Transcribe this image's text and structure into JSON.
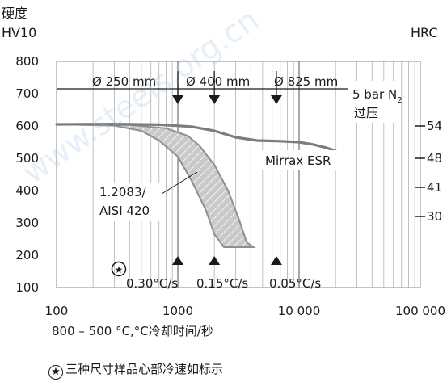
{
  "chart_data": {
    "type": "line",
    "xscale": "log",
    "xlim": [
      100,
      100000
    ],
    "ylim_left": [
      100,
      800
    ],
    "yticks_left": [
      100,
      200,
      300,
      400,
      500,
      600,
      700,
      800
    ],
    "xticks": [
      {
        "v": 100,
        "label": "100"
      },
      {
        "v": 1000,
        "label": "1000"
      },
      {
        "v": 10000,
        "label": "10 000"
      },
      {
        "v": 100000,
        "label": "100 000"
      }
    ],
    "yticks_right": [
      {
        "hv": 600,
        "label": "54"
      },
      {
        "hv": 500,
        "label": "48"
      },
      {
        "hv": 410,
        "label": "41"
      },
      {
        "hv": 320,
        "label": "30"
      }
    ],
    "ylabel_left_line1": "硬度",
    "ylabel_left_line2": "HV10",
    "ylabel_right": "HRC",
    "xlabel": "800 – 500 °C,°C冷却时间/秒",
    "series": [
      {
        "name": "Mirrax ESR",
        "points": [
          [
            100,
            605
          ],
          [
            300,
            606
          ],
          [
            700,
            604
          ],
          [
            1300,
            598
          ],
          [
            2000,
            585
          ],
          [
            3000,
            565
          ],
          [
            4500,
            555
          ],
          [
            7000,
            553
          ],
          [
            10000,
            550
          ],
          [
            13000,
            543
          ],
          [
            17000,
            532
          ],
          [
            20000,
            523
          ]
        ]
      },
      {
        "name": "1.2083/ AISI 420",
        "upper": [
          [
            100,
            605
          ],
          [
            400,
            603
          ],
          [
            800,
            593
          ],
          [
            1200,
            570
          ],
          [
            1500,
            540
          ],
          [
            2000,
            480
          ],
          [
            2600,
            400
          ],
          [
            3200,
            310
          ],
          [
            3700,
            240
          ],
          [
            4200,
            225
          ]
        ],
        "lower": [
          [
            100,
            605
          ],
          [
            300,
            601
          ],
          [
            500,
            585
          ],
          [
            700,
            555
          ],
          [
            1000,
            505
          ],
          [
            1300,
            430
          ],
          [
            1700,
            340
          ],
          [
            2000,
            265
          ],
          [
            2400,
            225
          ],
          [
            4200,
            225
          ]
        ]
      }
    ],
    "annotations": [
      {
        "label": "Ø 250 mm",
        "x": 1000
      },
      {
        "label": "Ø 400 mm",
        "x": 2000
      },
      {
        "label": "Ø 825 mm",
        "x": 6500
      }
    ],
    "cooling_rates": [
      "0.30°C/s",
      "0.15°C/s",
      "0.05°C/s"
    ],
    "pressure_label": "5 bar N",
    "pressure_sub": "2",
    "pressure_label2": "过压",
    "footnote_symbol": "★",
    "footnote": "三种尺寸样品心部冷速如标示",
    "watermark": "www.steels.org.cn"
  }
}
